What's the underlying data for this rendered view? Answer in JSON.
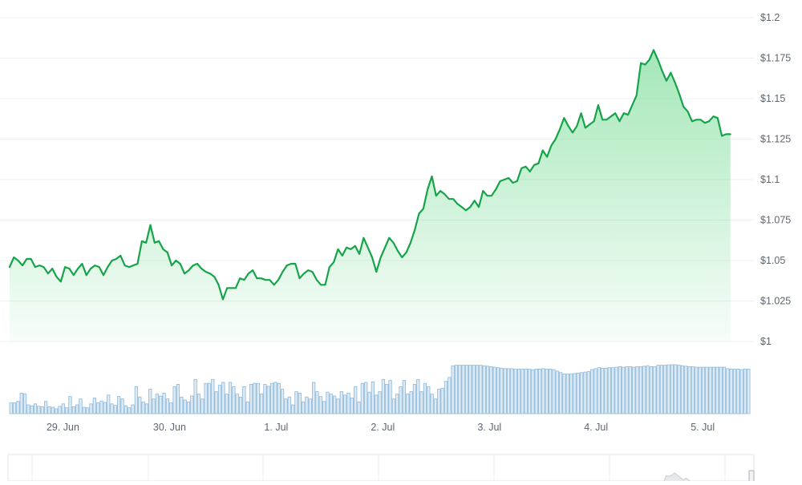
{
  "colors": {
    "line": "#16a34a",
    "area_top": "#86dfa0",
    "area_bottom": "#ffffff",
    "volume_fill": "#dbeaf5",
    "volume_stroke": "#8fb8d8",
    "grid": "#eef0f3",
    "text": "#5f6670",
    "navigator_line": "#c8ccd2"
  },
  "chart_data": {
    "type": "line",
    "title": "",
    "xlabel": "",
    "ylabel": "",
    "ylim": [
      1.0,
      1.2
    ],
    "y_ticks": [
      {
        "value": 1.2,
        "label": "$1.2"
      },
      {
        "value": 1.175,
        "label": "$1.175"
      },
      {
        "value": 1.15,
        "label": "$1.15"
      },
      {
        "value": 1.125,
        "label": "$1.125"
      },
      {
        "value": 1.1,
        "label": "$1.1"
      },
      {
        "value": 1.075,
        "label": "$1.075"
      },
      {
        "value": 1.05,
        "label": "$1.05"
      },
      {
        "value": 1.025,
        "label": "$1.025"
      },
      {
        "value": 1.0,
        "label": "$1"
      }
    ],
    "x_unit": "days from 28 Jun 00:00",
    "xlim": [
      28.5,
      35.45
    ],
    "x_ticks": [
      {
        "value": 29,
        "label": "29. Jun"
      },
      {
        "value": 30,
        "label": "30. Jun"
      },
      {
        "value": 31,
        "label": "1. Jul"
      },
      {
        "value": 32,
        "label": "2. Jul"
      },
      {
        "value": 33,
        "label": "3. Jul"
      },
      {
        "value": 34,
        "label": "4. Jul"
      },
      {
        "value": 35,
        "label": "5. Jul"
      }
    ],
    "price_points": [
      [
        28.5,
        1.046
      ],
      [
        28.54,
        1.052
      ],
      [
        28.58,
        1.05
      ],
      [
        28.62,
        1.047
      ],
      [
        28.66,
        1.051
      ],
      [
        28.7,
        1.051
      ],
      [
        28.74,
        1.046
      ],
      [
        28.78,
        1.047
      ],
      [
        28.82,
        1.046
      ],
      [
        28.86,
        1.042
      ],
      [
        28.9,
        1.045
      ],
      [
        28.94,
        1.04
      ],
      [
        28.98,
        1.037
      ],
      [
        29.02,
        1.046
      ],
      [
        29.06,
        1.045
      ],
      [
        29.1,
        1.041
      ],
      [
        29.14,
        1.045
      ],
      [
        29.18,
        1.048
      ],
      [
        29.22,
        1.041
      ],
      [
        29.26,
        1.045
      ],
      [
        29.3,
        1.047
      ],
      [
        29.34,
        1.046
      ],
      [
        29.38,
        1.041
      ],
      [
        29.42,
        1.046
      ],
      [
        29.46,
        1.05
      ],
      [
        29.5,
        1.051
      ],
      [
        29.54,
        1.053
      ],
      [
        29.58,
        1.047
      ],
      [
        29.62,
        1.046
      ],
      [
        29.66,
        1.047
      ],
      [
        29.7,
        1.048
      ],
      [
        29.74,
        1.062
      ],
      [
        29.78,
        1.061
      ],
      [
        29.82,
        1.072
      ],
      [
        29.86,
        1.061
      ],
      [
        29.9,
        1.062
      ],
      [
        29.94,
        1.057
      ],
      [
        29.98,
        1.055
      ],
      [
        30.02,
        1.047
      ],
      [
        30.06,
        1.05
      ],
      [
        30.1,
        1.048
      ],
      [
        30.14,
        1.042
      ],
      [
        30.18,
        1.044
      ],
      [
        30.22,
        1.047
      ],
      [
        30.26,
        1.048
      ],
      [
        30.3,
        1.045
      ],
      [
        30.34,
        1.043
      ],
      [
        30.38,
        1.042
      ],
      [
        30.42,
        1.04
      ],
      [
        30.46,
        1.035
      ],
      [
        30.5,
        1.026
      ],
      [
        30.54,
        1.033
      ],
      [
        30.58,
        1.033
      ],
      [
        30.62,
        1.033
      ],
      [
        30.66,
        1.039
      ],
      [
        30.7,
        1.038
      ],
      [
        30.74,
        1.042
      ],
      [
        30.78,
        1.044
      ],
      [
        30.82,
        1.039
      ],
      [
        30.86,
        1.039
      ],
      [
        30.9,
        1.038
      ],
      [
        30.94,
        1.038
      ],
      [
        30.98,
        1.035
      ],
      [
        31.02,
        1.038
      ],
      [
        31.06,
        1.043
      ],
      [
        31.1,
        1.047
      ],
      [
        31.14,
        1.048
      ],
      [
        31.18,
        1.048
      ],
      [
        31.22,
        1.039
      ],
      [
        31.26,
        1.042
      ],
      [
        31.3,
        1.044
      ],
      [
        31.34,
        1.043
      ],
      [
        31.38,
        1.038
      ],
      [
        31.42,
        1.035
      ],
      [
        31.46,
        1.035
      ],
      [
        31.5,
        1.046
      ],
      [
        31.54,
        1.049
      ],
      [
        31.58,
        1.057
      ],
      [
        31.62,
        1.053
      ],
      [
        31.66,
        1.058
      ],
      [
        31.7,
        1.057
      ],
      [
        31.74,
        1.059
      ],
      [
        31.78,
        1.054
      ],
      [
        31.82,
        1.064
      ],
      [
        31.86,
        1.058
      ],
      [
        31.9,
        1.052
      ],
      [
        31.94,
        1.043
      ],
      [
        31.98,
        1.052
      ],
      [
        32.02,
        1.058
      ],
      [
        32.06,
        1.064
      ],
      [
        32.1,
        1.061
      ],
      [
        32.14,
        1.056
      ],
      [
        32.18,
        1.052
      ],
      [
        32.22,
        1.055
      ],
      [
        32.26,
        1.061
      ],
      [
        32.3,
        1.069
      ],
      [
        32.34,
        1.079
      ],
      [
        32.38,
        1.082
      ],
      [
        32.42,
        1.094
      ],
      [
        32.46,
        1.102
      ],
      [
        32.5,
        1.09
      ],
      [
        32.54,
        1.093
      ],
      [
        32.58,
        1.091
      ],
      [
        32.62,
        1.088
      ],
      [
        32.66,
        1.088
      ],
      [
        32.7,
        1.085
      ],
      [
        32.74,
        1.083
      ],
      [
        32.78,
        1.081
      ],
      [
        32.82,
        1.083
      ],
      [
        32.86,
        1.087
      ],
      [
        32.9,
        1.083
      ],
      [
        32.94,
        1.093
      ],
      [
        32.98,
        1.09
      ],
      [
        33.02,
        1.09
      ],
      [
        33.06,
        1.094
      ],
      [
        33.1,
        1.099
      ],
      [
        33.14,
        1.1
      ],
      [
        33.18,
        1.101
      ],
      [
        33.22,
        1.098
      ],
      [
        33.26,
        1.099
      ],
      [
        33.3,
        1.107
      ],
      [
        33.34,
        1.108
      ],
      [
        33.38,
        1.105
      ],
      [
        33.42,
        1.109
      ],
      [
        33.46,
        1.11
      ],
      [
        33.5,
        1.118
      ],
      [
        33.54,
        1.114
      ],
      [
        33.58,
        1.121
      ],
      [
        33.62,
        1.125
      ],
      [
        33.66,
        1.131
      ],
      [
        33.7,
        1.138
      ],
      [
        33.74,
        1.133
      ],
      [
        33.78,
        1.129
      ],
      [
        33.82,
        1.133
      ],
      [
        33.86,
        1.141
      ],
      [
        33.9,
        1.132
      ],
      [
        33.94,
        1.134
      ],
      [
        33.98,
        1.136
      ],
      [
        34.02,
        1.146
      ],
      [
        34.06,
        1.137
      ],
      [
        34.1,
        1.137
      ],
      [
        34.14,
        1.139
      ],
      [
        34.18,
        1.141
      ],
      [
        34.22,
        1.136
      ],
      [
        34.26,
        1.141
      ],
      [
        34.3,
        1.14
      ],
      [
        34.34,
        1.146
      ],
      [
        34.38,
        1.152
      ],
      [
        34.42,
        1.172
      ],
      [
        34.46,
        1.171
      ],
      [
        34.5,
        1.174
      ],
      [
        34.54,
        1.18
      ],
      [
        34.58,
        1.174
      ],
      [
        34.62,
        1.167
      ],
      [
        34.66,
        1.161
      ],
      [
        34.7,
        1.166
      ],
      [
        34.74,
        1.16
      ],
      [
        34.78,
        1.153
      ],
      [
        34.82,
        1.145
      ],
      [
        34.86,
        1.142
      ],
      [
        34.9,
        1.136
      ],
      [
        34.94,
        1.137
      ],
      [
        34.98,
        1.137
      ],
      [
        35.02,
        1.135
      ],
      [
        35.06,
        1.136
      ],
      [
        35.1,
        1.139
      ],
      [
        35.14,
        1.138
      ],
      [
        35.18,
        1.127
      ],
      [
        35.22,
        1.128
      ],
      [
        35.26,
        1.128
      ]
    ],
    "volume_relative": [
      0.22,
      0.22,
      0.25,
      0.42,
      0.4,
      0.18,
      0.16,
      0.2,
      0.15,
      0.14,
      0.25,
      0.14,
      0.13,
      0.1,
      0.15,
      0.2,
      0.12,
      0.35,
      0.14,
      0.18,
      0.3,
      0.13,
      0.12,
      0.2,
      0.32,
      0.22,
      0.26,
      0.23,
      0.38,
      0.2,
      0.17,
      0.35,
      0.3,
      0.16,
      0.12,
      0.18,
      0.55,
      0.34,
      0.24,
      0.2,
      0.5,
      0.3,
      0.4,
      0.36,
      0.42,
      0.3,
      0.22,
      0.55,
      0.6,
      0.34,
      0.28,
      0.24,
      0.36,
      0.7,
      0.4,
      0.3,
      0.62,
      0.62,
      0.7,
      0.45,
      0.58,
      0.64,
      0.4,
      0.64,
      0.55,
      0.4,
      0.34,
      0.55,
      0.24,
      0.6,
      0.62,
      0.62,
      0.4,
      0.6,
      0.56,
      0.62,
      0.64,
      0.62,
      0.5,
      0.3,
      0.34,
      0.18,
      0.45,
      0.42,
      0.24,
      0.34,
      0.3,
      0.64,
      0.45,
      0.35,
      0.25,
      0.44,
      0.4,
      0.36,
      0.3,
      0.45,
      0.38,
      0.42,
      0.32,
      0.55,
      0.24,
      0.62,
      0.64,
      0.44,
      0.65,
      0.38,
      0.45,
      0.7,
      0.6,
      0.68,
      0.3,
      0.4,
      0.55,
      0.68,
      0.4,
      0.45,
      0.6,
      0.7,
      0.45,
      0.62,
      0.55,
      0.4,
      0.3,
      0.5,
      0.52,
      0.66,
      0.74,
      0.98,
      0.99,
      0.99,
      0.99,
      0.99,
      0.99,
      0.99,
      0.99,
      0.99,
      0.98,
      0.97,
      0.96,
      0.95,
      0.94,
      0.93,
      0.92,
      0.92,
      0.92,
      0.91,
      0.91,
      0.91,
      0.91,
      0.91,
      0.9,
      0.91,
      0.91,
      0.92,
      0.91,
      0.91,
      0.9,
      0.87,
      0.84,
      0.81,
      0.81,
      0.81,
      0.82,
      0.83,
      0.84,
      0.85,
      0.86,
      0.9,
      0.92,
      0.94,
      0.93,
      0.93,
      0.94,
      0.94,
      0.95,
      0.96,
      0.95,
      0.96,
      0.96,
      0.95,
      0.96,
      0.96,
      0.97,
      0.98,
      0.96,
      0.96,
      0.99,
      0.99,
      0.99,
      1.0,
      1.0,
      1.0,
      0.99,
      0.98,
      0.97,
      0.96,
      0.96,
      0.95,
      0.95,
      0.95,
      0.95,
      0.95,
      0.95,
      0.95,
      0.95,
      0.95,
      0.92,
      0.91,
      0.91,
      0.91,
      0.9,
      0.91,
      0.91
    ]
  }
}
